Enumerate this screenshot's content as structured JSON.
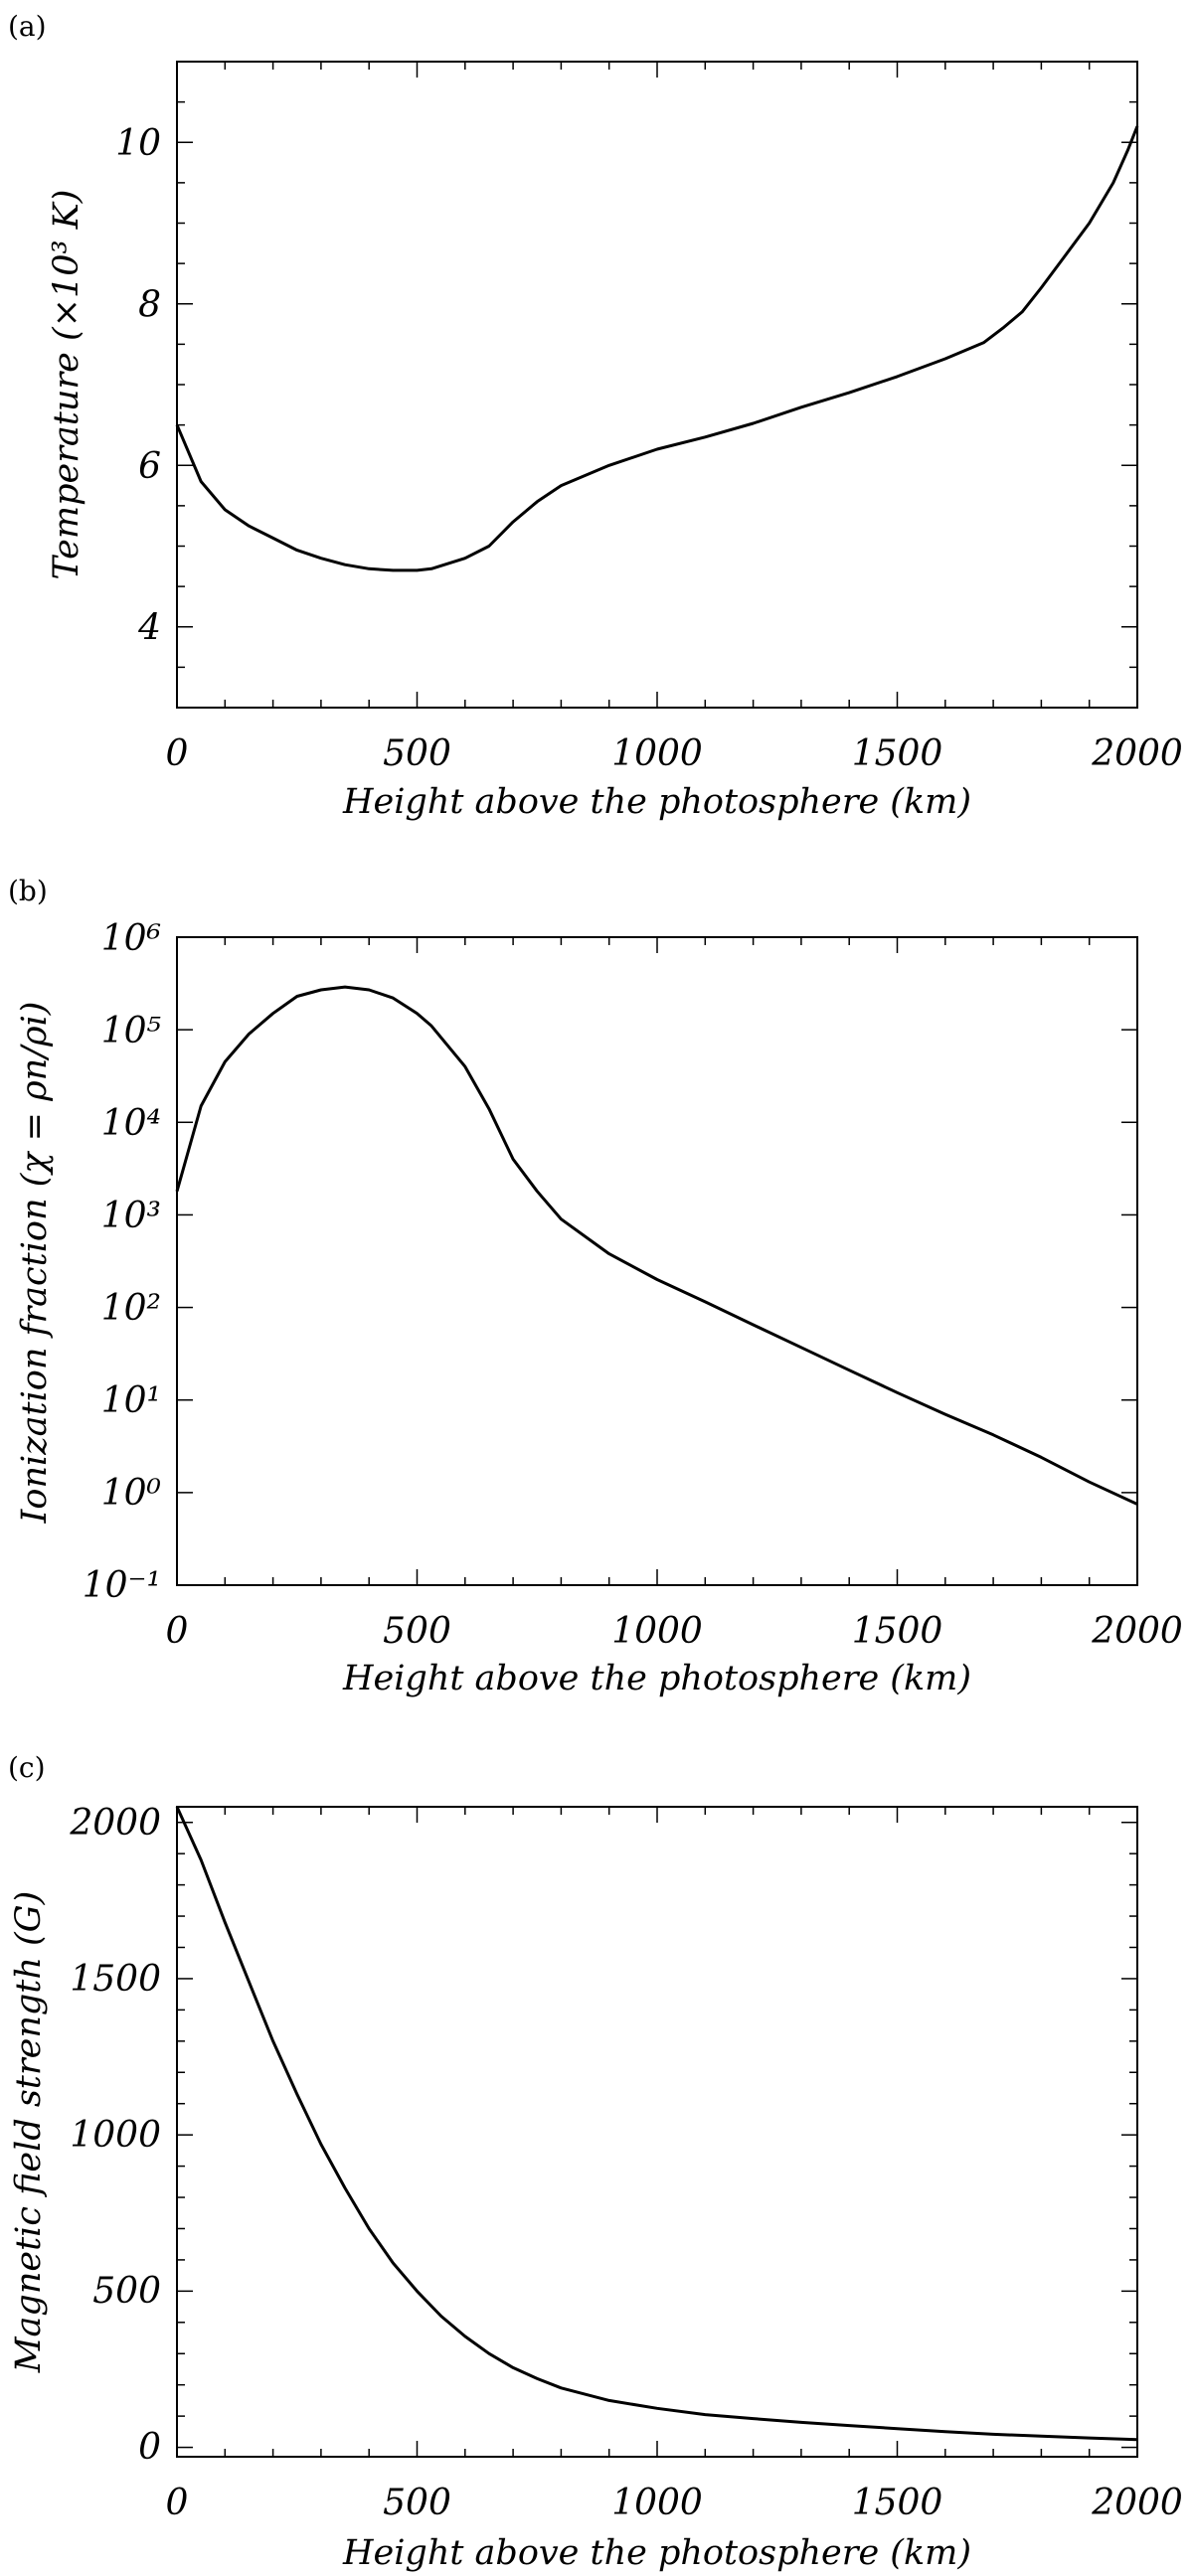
{
  "chart_data": [
    {
      "panel": "(a)",
      "type": "line",
      "xlabel": "Height above the photosphere (km)",
      "ylabel": "Temperature (×10³ K)",
      "xlim": [
        0,
        2000
      ],
      "ylim": [
        3,
        11
      ],
      "xticks": [
        "0",
        "500",
        "1000",
        "1500",
        "2000"
      ],
      "yticks": [
        "4",
        "6",
        "8",
        "10"
      ],
      "x": [
        0,
        50,
        100,
        150,
        200,
        250,
        300,
        350,
        400,
        450,
        500,
        530,
        600,
        650,
        700,
        750,
        800,
        900,
        1000,
        1100,
        1200,
        1300,
        1400,
        1500,
        1600,
        1680,
        1720,
        1760,
        1800,
        1850,
        1900,
        1950,
        1980,
        2000
      ],
      "y": [
        6.5,
        5.8,
        5.45,
        5.25,
        5.1,
        4.95,
        4.85,
        4.77,
        4.72,
        4.7,
        4.7,
        4.72,
        4.85,
        5.0,
        5.3,
        5.55,
        5.75,
        6.0,
        6.2,
        6.35,
        6.52,
        6.72,
        6.9,
        7.1,
        7.32,
        7.52,
        7.7,
        7.9,
        8.2,
        8.6,
        9.0,
        9.5,
        9.9,
        10.2
      ]
    },
    {
      "panel": "(b)",
      "type": "line",
      "scale": "log",
      "xlabel": "Height above the photosphere (km)",
      "ylabel": "Ionization fraction (χ = ρn/ρi)",
      "xlim": [
        0,
        2000
      ],
      "ylim": [
        0.1,
        1000000
      ],
      "xticks": [
        "0",
        "500",
        "1000",
        "1500",
        "2000"
      ],
      "yticks": [
        "10⁻¹",
        "10⁰",
        "10¹",
        "10²",
        "10³",
        "10⁴",
        "10⁵",
        "10⁶"
      ],
      "x": [
        0,
        50,
        100,
        150,
        200,
        250,
        300,
        350,
        400,
        450,
        500,
        530,
        600,
        650,
        700,
        750,
        800,
        900,
        1000,
        1100,
        1200,
        1300,
        1400,
        1500,
        1600,
        1700,
        1800,
        1900,
        2000
      ],
      "y": [
        1800,
        15000,
        45000,
        90000,
        150000,
        230000,
        270000,
        290000,
        270000,
        220000,
        150000,
        110000,
        40000,
        14000,
        4000,
        1800,
        900,
        380,
        200,
        115,
        65,
        37,
        21,
        12,
        7,
        4.2,
        2.4,
        1.3,
        0.75
      ]
    },
    {
      "panel": "(c)",
      "type": "line",
      "xlabel": "Height above the photosphere (km)",
      "ylabel": "Magnetic field strength (G)",
      "xlim": [
        0,
        2000
      ],
      "ylim": [
        -30,
        2050
      ],
      "xticks": [
        "0",
        "500",
        "1000",
        "1500",
        "2000"
      ],
      "yticks": [
        "0",
        "500",
        "1000",
        "1500",
        "2000"
      ],
      "x": [
        0,
        50,
        100,
        150,
        200,
        250,
        300,
        350,
        400,
        450,
        500,
        550,
        600,
        650,
        700,
        750,
        800,
        900,
        1000,
        1100,
        1200,
        1300,
        1400,
        1500,
        1600,
        1700,
        1800,
        1900,
        2000
      ],
      "y": [
        2050,
        1880,
        1680,
        1490,
        1300,
        1130,
        970,
        830,
        700,
        590,
        500,
        420,
        355,
        300,
        255,
        220,
        190,
        150,
        125,
        105,
        92,
        80,
        70,
        60,
        50,
        42,
        36,
        30,
        25
      ]
    }
  ]
}
